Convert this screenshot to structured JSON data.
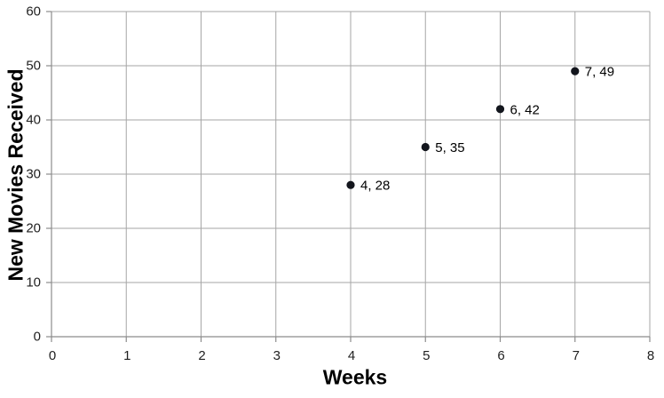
{
  "chart_data": {
    "type": "scatter",
    "title": "",
    "xlabel": "Weeks",
    "ylabel": "New Movies Received",
    "points": [
      {
        "x": 4,
        "y": 28,
        "label": "4, 28"
      },
      {
        "x": 5,
        "y": 35,
        "label": "5, 35"
      },
      {
        "x": 6,
        "y": 42,
        "label": "6, 42"
      },
      {
        "x": 7,
        "y": 49,
        "label": "7, 49"
      }
    ],
    "xlim": [
      0,
      8
    ],
    "ylim": [
      0,
      60
    ],
    "x_ticks": [
      0,
      1,
      2,
      3,
      4,
      5,
      6,
      7,
      8
    ],
    "y_ticks": [
      0,
      10,
      20,
      30,
      40,
      50,
      60
    ],
    "grid": true,
    "legend": "none",
    "colors": {
      "marker": "#13161d",
      "gridline": "#a6a6a6",
      "axis": "#8c8c8c",
      "tick_label": "#1f1f1f",
      "data_label": "#000000",
      "background": "#ffffff"
    }
  }
}
